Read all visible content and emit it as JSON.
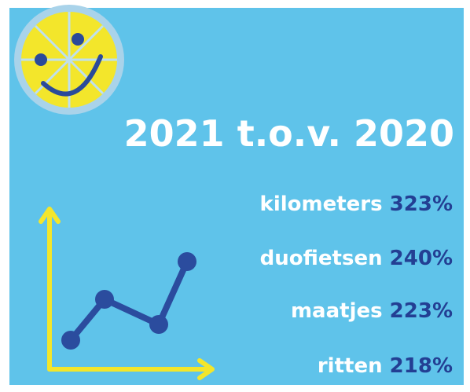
{
  "title": "2021 t.o.v. 2020",
  "stats": [
    {
      "label": "kilometers",
      "value": "323%"
    },
    {
      "label": "duofietsen",
      "value": "240%"
    },
    {
      "label": "maatjes",
      "value": "223%"
    },
    {
      "label": "ritten",
      "value": "218%"
    }
  ]
}
